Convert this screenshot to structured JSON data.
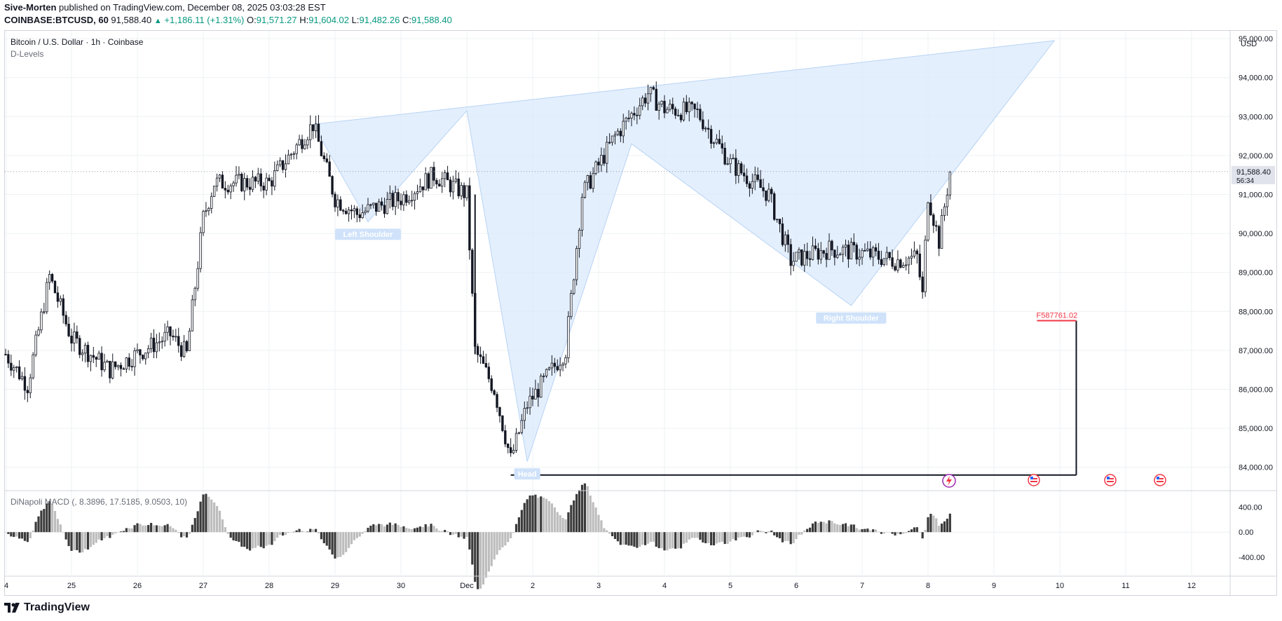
{
  "header": {
    "author": "Sive-Morten",
    "published": " published on TradingView.com, December 08, 2025 03:03:28 EST",
    "symbol": "COINBASE:BTCUSD, 60",
    "last": "91,588.40",
    "change": "+1,186.11 (+1.31%)",
    "o_label": "O:",
    "o": "91,571.27",
    "h_label": "H:",
    "h": "91,604.02",
    "l_label": "L:",
    "l": "91,482.26",
    "c_label": "C:",
    "c": "91,588.40"
  },
  "legend": {
    "title": "Bitcoin / U.S. Dollar · 1h · Coinbase",
    "indicator": "D-Levels",
    "macd_title": "DiNapoli MACD (, 8.3896, 17.5185, 9.0503, 10)"
  },
  "price_axis": {
    "currency": "USD",
    "last_price_label": "91,588.40",
    "countdown": "56:34",
    "ticks": [
      "95,000.00",
      "94,000.00",
      "93,000.00",
      "92,000.00",
      "91,000.00",
      "90,000.00",
      "89,000.00",
      "88,000.00",
      "87,000.00",
      "86,000.00",
      "85,000.00",
      "84,000.00"
    ]
  },
  "macd_axis": {
    "ticks": [
      "400.00",
      "0.00",
      "-400.00"
    ]
  },
  "time_axis": {
    "ticks": [
      "4",
      "25",
      "26",
      "27",
      "28",
      "29",
      "30",
      "Dec",
      "2",
      "3",
      "4",
      "5",
      "6",
      "7",
      "8",
      "9",
      "10",
      "11",
      "12"
    ]
  },
  "annotations": {
    "left_shoulder": "Left Shoulder",
    "head": "Head",
    "right_shoulder": "Right Shoulder",
    "target_label": "F587761.02"
  },
  "colors": {
    "up": "#089981",
    "candle": "#131722",
    "pattern_fill": "#dbeafc",
    "macd_dark": "#3a3a3a",
    "macd_light": "#bdbdbd",
    "target": "#f23645",
    "grid": "#eef0f3"
  },
  "footer": {
    "brand": "TradingView"
  },
  "chart_data": {
    "type": "candlestick",
    "title": "Bitcoin / U.S. Dollar · 1h · Coinbase",
    "ylim": [
      83400,
      95200
    ],
    "grid": true,
    "x_range_days": [
      "Nov 24",
      "Dec 12"
    ],
    "keypoints": [
      {
        "t": "Nov 24 00:00",
        "price": 86900
      },
      {
        "t": "Nov 24 08:00",
        "price": 86100
      },
      {
        "t": "Nov 24 16:00",
        "price": 88900
      },
      {
        "t": "Nov 25 00:00",
        "price": 87300
      },
      {
        "t": "Nov 25 14:00",
        "price": 86500
      },
      {
        "t": "Nov 26 12:00",
        "price": 87400
      },
      {
        "t": "Nov 26 18:00",
        "price": 86900
      },
      {
        "t": "Nov 27 00:00",
        "price": 90400
      },
      {
        "t": "Nov 27 04:00",
        "price": 91300
      },
      {
        "t": "Nov 28 00:00",
        "price": 91300
      },
      {
        "t": "Nov 28 16:00",
        "price": 92800
      },
      {
        "t": "Nov 29 00:00",
        "price": 90900
      },
      {
        "t": "Nov 29 08:00",
        "price": 90500
      },
      {
        "t": "Nov 30 00:00",
        "price": 90900
      },
      {
        "t": "Nov 30 12:00",
        "price": 91500
      },
      {
        "t": "Dec 01 00:00",
        "price": 91000
      },
      {
        "t": "Dec 01 03:00",
        "price": 87000
      },
      {
        "t": "Dec 01 10:00",
        "price": 86000
      },
      {
        "t": "Dec 01 16:00",
        "price": 84200
      },
      {
        "t": "Dec 01 22:00",
        "price": 85600
      },
      {
        "t": "Dec 02 12:00",
        "price": 87000
      },
      {
        "t": "Dec 02 18:00",
        "price": 91000
      },
      {
        "t": "Dec 03 06:00",
        "price": 92500
      },
      {
        "t": "Dec 03 18:00",
        "price": 93600
      },
      {
        "t": "Dec 04 00:00",
        "price": 93200
      },
      {
        "t": "Dec 04 12:00",
        "price": 93100
      },
      {
        "t": "Dec 05 00:00",
        "price": 91800
      },
      {
        "t": "Dec 05 14:00",
        "price": 91000
      },
      {
        "t": "Dec 05 22:00",
        "price": 89300
      },
      {
        "t": "Dec 06 12:00",
        "price": 89600
      },
      {
        "t": "Dec 07 00:00",
        "price": 89500
      },
      {
        "t": "Dec 07 12:00",
        "price": 89300
      },
      {
        "t": "Dec 07 20:00",
        "price": 89400
      },
      {
        "t": "Dec 07 22:00",
        "price": 88400
      },
      {
        "t": "Dec 08 00:00",
        "price": 91000
      },
      {
        "t": "Dec 08 04:00",
        "price": 89800
      },
      {
        "t": "Dec 08 08:00",
        "price": 91588
      }
    ],
    "pattern": {
      "name": "Head and Shoulders",
      "points": [
        {
          "t": "Nov 28 16:00",
          "price": 92800
        },
        {
          "t": "Nov 29 12:00",
          "price": 90300
        },
        {
          "t": "Dec 01 00:00",
          "price": 93150
        },
        {
          "t": "Dec 01 22:00",
          "price": 84150
        },
        {
          "t": "Dec 03 12:00",
          "price": 92300
        },
        {
          "t": "Dec 06 20:00",
          "price": 88150
        },
        {
          "t": "Dec 09 22:00",
          "price": 94950
        }
      ]
    },
    "target_box": {
      "top_price": 87761.02,
      "bottom_price": 83800,
      "start": "Dec 01 16:00",
      "end": "Dec 10 06:00"
    },
    "macd": {
      "ylim": [
        -680,
        640
      ]
    }
  }
}
